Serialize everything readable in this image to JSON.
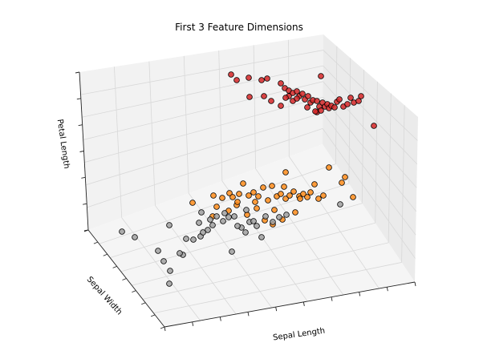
{
  "chart_data": {
    "type": "scatter",
    "dimensions": 3,
    "title": "First 3 Feature Dimensions",
    "xlabel": "Sepal Length",
    "ylabel": "Sepal Width",
    "zlabel": "Petal Length",
    "tick_labels": "hidden",
    "grid": true,
    "legend": "none",
    "colors": {
      "red": "#d62728",
      "orange": "#ff8c1a",
      "gray": "#a0a0a0",
      "marker_edge": "#000000"
    },
    "series": [
      {
        "color": "#d62728",
        "points": [
          [
            288,
            93
          ],
          [
            310,
            97
          ],
          [
            326,
            100
          ],
          [
            333,
            98
          ],
          [
            350,
            104
          ],
          [
            355,
            110
          ],
          [
            360,
            113
          ],
          [
            365,
            116
          ],
          [
            370,
            114
          ],
          [
            373,
            120
          ],
          [
            377,
            117
          ],
          [
            380,
            124
          ],
          [
            384,
            120
          ],
          [
            387,
            128
          ],
          [
            390,
            125
          ],
          [
            395,
            126
          ],
          [
            398,
            133
          ],
          [
            400,
            95
          ],
          [
            402,
            128
          ],
          [
            405,
            133
          ],
          [
            408,
            130
          ],
          [
            410,
            135
          ],
          [
            413,
            132
          ],
          [
            417,
            134
          ],
          [
            420,
            127
          ],
          [
            423,
            124
          ],
          [
            428,
            133
          ],
          [
            433,
            130
          ],
          [
            437,
            122
          ],
          [
            441,
            128
          ],
          [
            447,
            126
          ],
          [
            450,
            120
          ],
          [
            395,
            140
          ],
          [
            400,
            138
          ],
          [
            466,
            157
          ],
          [
            338,
            126
          ],
          [
            350,
            132
          ],
          [
            360,
            120
          ],
          [
            365,
            126
          ],
          [
            370,
            123
          ],
          [
            295,
            100
          ],
          [
            329,
            120
          ],
          [
            311,
            121
          ],
          [
            356,
            122
          ],
          [
            383,
            134
          ],
          [
            393,
            139
          ]
        ]
      },
      {
        "color": "#ff8c1a",
        "points": [
          [
            240,
            253
          ],
          [
            266,
            244
          ],
          [
            277,
            247
          ],
          [
            286,
            241
          ],
          [
            290,
            246
          ],
          [
            298,
            242
          ],
          [
            303,
            229
          ],
          [
            310,
            244
          ],
          [
            316,
            240
          ],
          [
            322,
            245
          ],
          [
            328,
            234
          ],
          [
            334,
            250
          ],
          [
            339,
            232
          ],
          [
            345,
            245
          ],
          [
            350,
            242
          ],
          [
            356,
            248
          ],
          [
            361,
            244
          ],
          [
            366,
            239
          ],
          [
            373,
            245
          ],
          [
            378,
            242
          ],
          [
            383,
            246
          ],
          [
            387,
            240
          ],
          [
            392,
            230
          ],
          [
            397,
            248
          ],
          [
            403,
            244
          ],
          [
            410,
            209
          ],
          [
            430,
            221
          ],
          [
            426,
            228
          ],
          [
            440,
            246
          ],
          [
            356,
            215
          ],
          [
            270,
            258
          ],
          [
            295,
            256
          ],
          [
            320,
            260
          ],
          [
            342,
            262
          ],
          [
            368,
            265
          ],
          [
            330,
            275
          ],
          [
            340,
            280
          ],
          [
            352,
            274
          ],
          [
            308,
            268
          ],
          [
            285,
            263
          ],
          [
            265,
            270
          ],
          [
            296,
            252
          ],
          [
            318,
            252
          ],
          [
            354,
            233
          ],
          [
            374,
            248
          ]
        ]
      },
      {
        "color": "#a0a0a0",
        "points": [
          [
            152,
            289
          ],
          [
            168,
            296
          ],
          [
            211,
            281
          ],
          [
            197,
            313
          ],
          [
            204,
            326
          ],
          [
            212,
            338
          ],
          [
            211,
            354
          ],
          [
            228,
            318
          ],
          [
            232,
            298
          ],
          [
            241,
            299
          ],
          [
            250,
            295
          ],
          [
            259,
            287
          ],
          [
            265,
            281
          ],
          [
            248,
            278
          ],
          [
            251,
            265
          ],
          [
            262,
            274
          ],
          [
            270,
            270
          ],
          [
            280,
            266
          ],
          [
            292,
            270
          ],
          [
            301,
            284
          ],
          [
            306,
            290
          ],
          [
            311,
            277
          ],
          [
            320,
            282
          ],
          [
            326,
            296
          ],
          [
            340,
            277
          ],
          [
            348,
            271
          ],
          [
            357,
            268
          ],
          [
            289,
            314
          ],
          [
            224,
            316
          ],
          [
            424,
            255
          ],
          [
            278,
            276
          ],
          [
            285,
            271
          ],
          [
            307,
            262
          ],
          [
            331,
            270
          ],
          [
            316,
            276
          ],
          [
            253,
            290
          ],
          [
            296,
            282
          ]
        ]
      }
    ]
  }
}
